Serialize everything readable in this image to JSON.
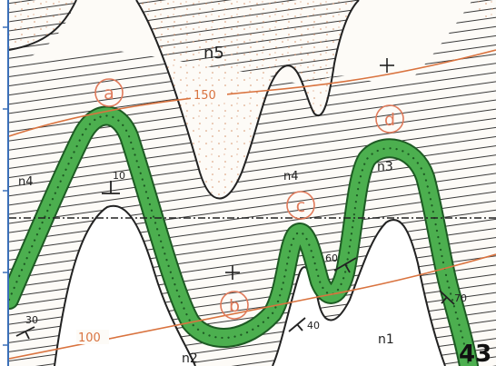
{
  "map": {
    "formation_labels": [
      "n5",
      "n4",
      "n4",
      "n3",
      "n2",
      "n1"
    ],
    "point_labels": [
      "a",
      "b",
      "c",
      "d"
    ],
    "contour_labels": [
      "150",
      "100"
    ],
    "dip_labels": [
      "10",
      "60",
      "70",
      "30",
      "40"
    ],
    "figure_number": "43",
    "colors": {
      "marker_bed": "#4caf4f",
      "marker_bed_dots": "#1d5a23",
      "contour": "#d9733f",
      "point_circle": "#e07a5a",
      "hatch": "#3a3a3a",
      "youngest_stipple": "#d4936c",
      "frame_left": "#3a6fb8"
    }
  }
}
